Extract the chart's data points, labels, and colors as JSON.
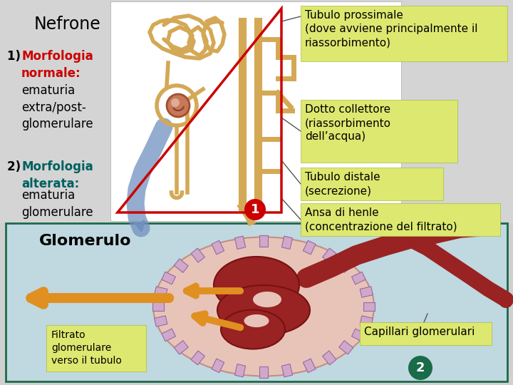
{
  "bg_color": "#d0d0d0",
  "top_bg": "#c8c8c8",
  "bottom_bg": "#c0d8e0",
  "bottom_border": "#1a6b4a",
  "title": "Nefrone",
  "label1_red": "1) Morfologia\n    normale:",
  "label1_black": "    ematuria\n    extra/post-\n    glomerulare",
  "label2_teal": "2) Morfologia\n    alterata:",
  "label2_black": "    ematuria\n    glomerulare",
  "glomerulo_title": "Glomerulo",
  "box1_text": "Tubulo prossimale\n(dove avviene principalmente il\nriassorbimento)",
  "box2_text": "Dotto collettore\n(riassorbimento\ndell’acqua)",
  "box3_text": "Tubulo distale\n(secrezione)",
  "box4_text": "Ansa di henle\n(concentrazione del filtrato)",
  "box5_text": "Capillari glomerulari",
  "box6_text": "Filtrato\nglomerulare\nverso il tubulo",
  "box_bg": "#dde870",
  "red_color": "#cc0000",
  "teal_color": "#006060",
  "circle1_color": "#cc0000",
  "circle2_color": "#1a6b4a",
  "triangle_color": "#cc0000",
  "line_color": "#555555",
  "nephron_color": "#d4a855",
  "blue_arrow_color": "#7090c0"
}
